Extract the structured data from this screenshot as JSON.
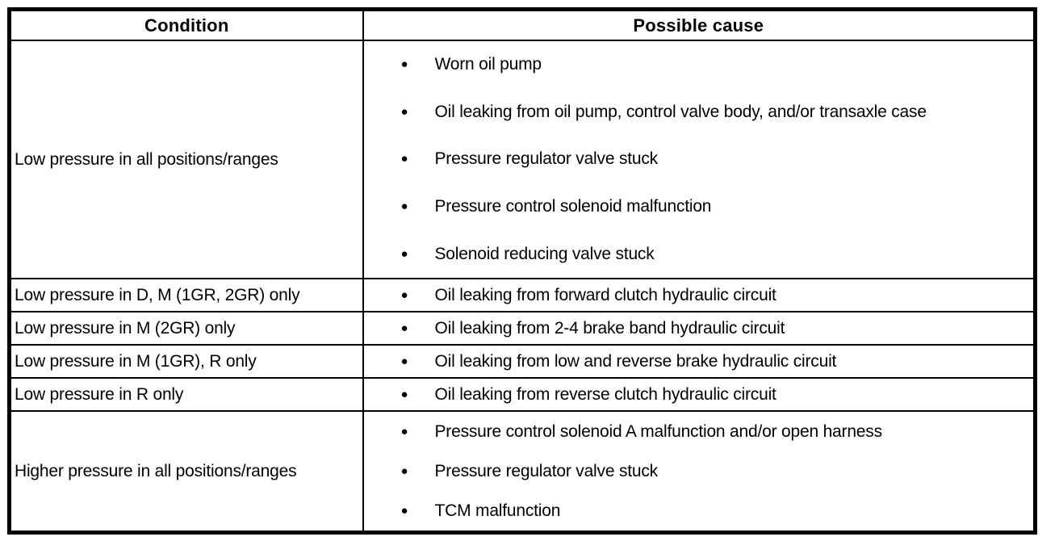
{
  "colors": {
    "background": "#ffffff",
    "border": "#000000",
    "text": "#000000"
  },
  "table": {
    "bullet_glyph": "●",
    "headers": {
      "condition": "Condition",
      "possible_cause": "Possible cause"
    },
    "rows": [
      {
        "condition": "Low pressure in all positions/ranges",
        "causes": [
          "Worn oil pump",
          "Oil leaking from oil pump, control valve body, and/or transaxle case",
          "Pressure regulator valve stuck",
          "Pressure control solenoid malfunction",
          "Solenoid reducing valve stuck"
        ]
      },
      {
        "condition": "Low pressure in D, M (1GR, 2GR) only",
        "causes": [
          "Oil leaking from forward clutch hydraulic circuit"
        ]
      },
      {
        "condition": "Low pressure in M (2GR) only",
        "causes": [
          "Oil leaking from 2-4 brake band hydraulic circuit"
        ]
      },
      {
        "condition": "Low pressure in M (1GR), R only",
        "causes": [
          "Oil leaking from low and reverse brake hydraulic circuit"
        ]
      },
      {
        "condition": "Low pressure in R only",
        "causes": [
          "Oil leaking from reverse clutch hydraulic circuit"
        ]
      },
      {
        "condition": "Higher pressure in all positions/ranges",
        "causes": [
          "Pressure control solenoid A malfunction and/or open harness",
          "Pressure regulator valve stuck",
          "TCM malfunction"
        ]
      }
    ]
  }
}
